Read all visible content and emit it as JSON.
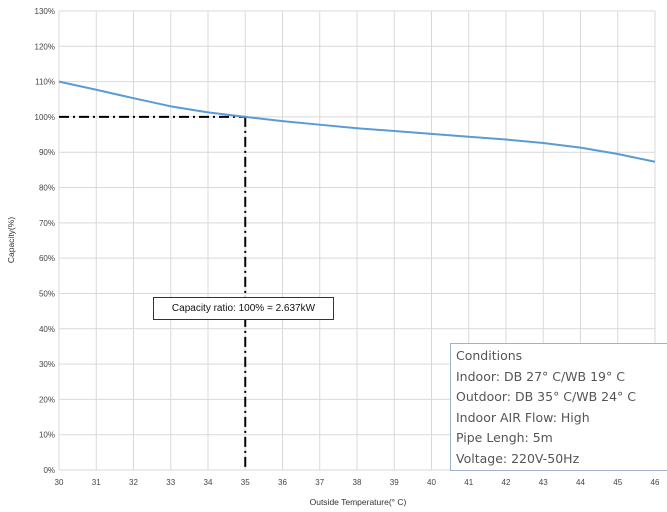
{
  "chart_data": {
    "type": "line",
    "xlabel": "Outside Temperature(° C)",
    "ylabel": "Capacity(%)",
    "xlim": [
      30,
      46
    ],
    "ylim": [
      0,
      130
    ],
    "x_ticks": [
      30,
      31,
      32,
      33,
      34,
      35,
      36,
      37,
      38,
      39,
      40,
      41,
      42,
      43,
      44,
      45,
      46
    ],
    "y_ticks": [
      "0%",
      "10%",
      "20%",
      "30%",
      "40%",
      "50%",
      "60%",
      "70%",
      "80%",
      "90%",
      "100%",
      "110%",
      "120%",
      "130%"
    ],
    "grid": true,
    "series": [
      {
        "color": "#5b9bd5",
        "points": [
          [
            30,
            110
          ],
          [
            31,
            107.7
          ],
          [
            32,
            105.3
          ],
          [
            33,
            103
          ],
          [
            34,
            101.3
          ],
          [
            35,
            100
          ],
          [
            36,
            98.8
          ],
          [
            37,
            97.8
          ],
          [
            38,
            96.8
          ],
          [
            39,
            96
          ],
          [
            40,
            95.2
          ],
          [
            41,
            94.4
          ],
          [
            42,
            93.6
          ],
          [
            43,
            92.6
          ],
          [
            44,
            91.3
          ],
          [
            45,
            89.5
          ],
          [
            46,
            87.3
          ]
        ]
      }
    ],
    "reference": {
      "x": 35,
      "y": 100,
      "color": "#000000"
    },
    "annotation": "Capacity ratio: 100% = 2.637kW",
    "conditions": [
      "Conditions",
      "Indoor: DB 27° C/WB 19° C",
      "Outdoor: DB 35° C/WB 24° C",
      "Indoor AIR Flow: High",
      "Pipe Lengh: 5m",
      "Voltage: 220V-50Hz"
    ]
  }
}
